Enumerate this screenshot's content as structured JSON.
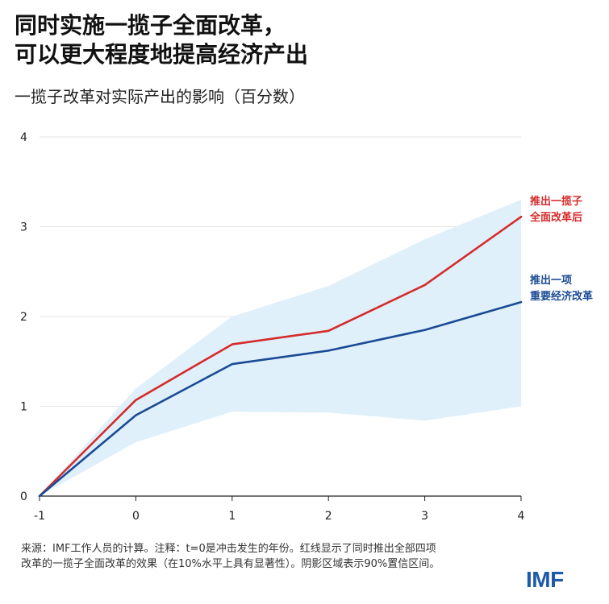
{
  "title": {
    "line1": "同时实施一揽子全面改革，",
    "line2": "可以更大程度地提高经济产出"
  },
  "subtitle": "一揽子改革对实际产出的影响（百分数）",
  "chart_data": {
    "type": "line",
    "x": [
      -1,
      0,
      1,
      2,
      3,
      4
    ],
    "ylim": [
      0,
      4
    ],
    "yticks": [
      0,
      1,
      2,
      3,
      4
    ],
    "xticks": [
      "-1",
      "0",
      "1",
      "2",
      "3",
      "4"
    ],
    "ytick_labels": [
      "0",
      "1",
      "2",
      "3",
      "4"
    ],
    "xlabel": "",
    "ylabel": "",
    "grid": true,
    "series": [
      {
        "name": "推出一揽子全面改革后",
        "label_lines": [
          "推出一揽子",
          "全面改革后"
        ],
        "color": "#d62b2b",
        "values": [
          0,
          1.07,
          1.69,
          1.84,
          2.35,
          3.11
        ]
      },
      {
        "name": "推出一项重要经济改革",
        "label_lines": [
          "推出一项",
          "重要经济改革"
        ],
        "color": "#1a4a94",
        "values": [
          0,
          0.9,
          1.47,
          1.62,
          1.85,
          2.16
        ]
      }
    ],
    "confidence_band": {
      "name": "90%置信区间",
      "color": "#dff0fb",
      "upper": [
        0,
        1.2,
        2.0,
        2.34,
        2.86,
        3.3
      ],
      "lower": [
        0,
        0.6,
        0.94,
        0.93,
        0.84,
        1.0
      ]
    }
  },
  "note": {
    "line1": "来源：IMF工作人员的计算。注释：t=0是冲击发生的年份。红线显示了同时推出全部四项",
    "line2": "改革的一揽子全面改革的效果（在10%水平上具有显著性）。阴影区域表示90%置信区间。"
  },
  "logo": "IMF",
  "colors": {
    "accent": "#1f5aa8",
    "red": "#d62b2b",
    "blue": "#1a4a94",
    "band": "#dff0fb"
  }
}
